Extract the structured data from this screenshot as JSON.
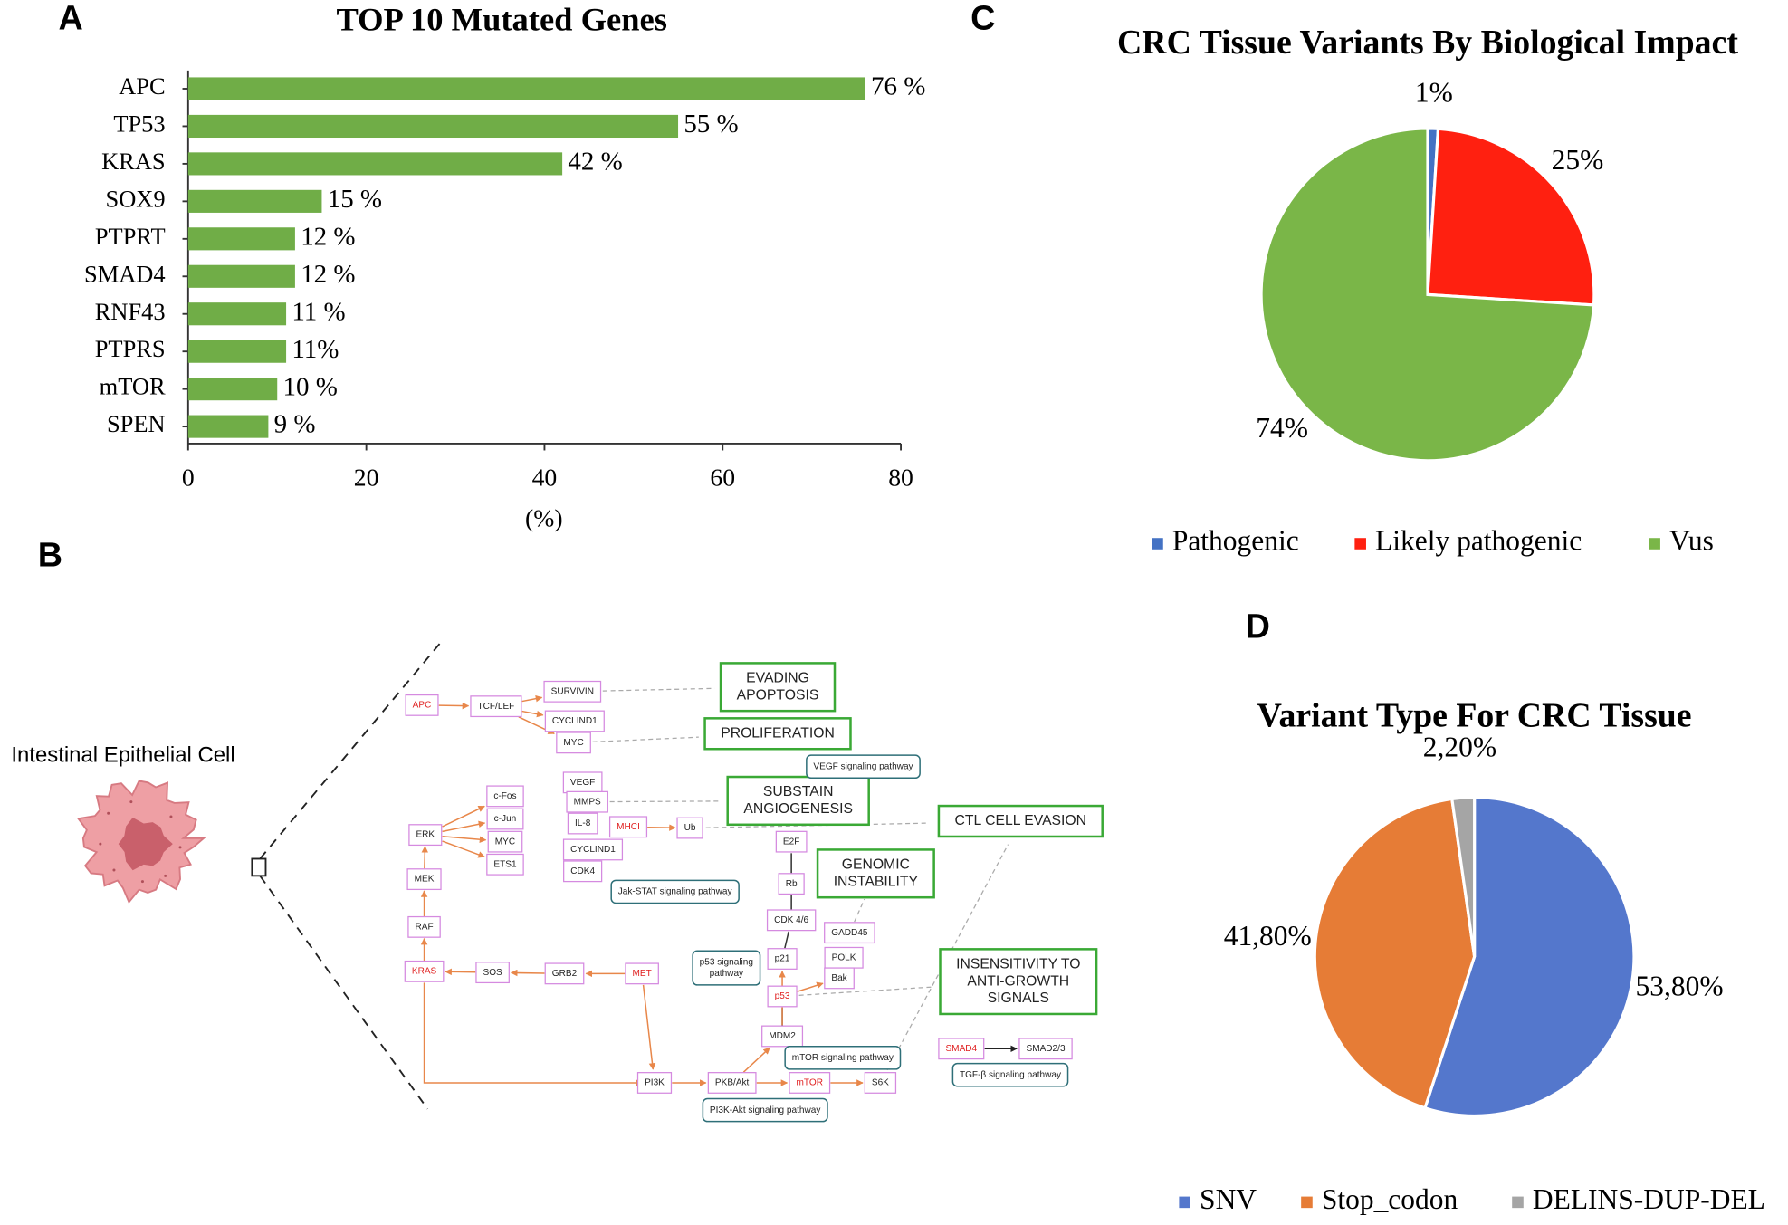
{
  "panel_labels": [
    "A",
    "B",
    "C",
    "D"
  ],
  "chart_data": [
    {
      "type": "bar",
      "orientation": "horizontal",
      "title": "TOP 10 Mutated Genes",
      "categories": [
        "APC",
        "TP53",
        "KRAS",
        "SOX9",
        "PTPRT",
        "SMAD4",
        "RNF43",
        "PTPRS",
        "mTOR",
        "SPEN"
      ],
      "values": [
        76,
        55,
        42,
        15,
        12,
        12,
        11,
        11,
        10,
        9
      ],
      "value_labels": [
        "76 %",
        "55 %",
        "42 %",
        "15 %",
        "12 %",
        "12 %",
        "11 %",
        "11%",
        "10 %",
        "9 %"
      ],
      "color": "#70ad47",
      "xlim": [
        0,
        80
      ],
      "xticks": [
        0,
        20,
        40,
        60,
        80
      ],
      "xlabel": "(%)"
    },
    {
      "type": "pie",
      "title": "CRC Tissue Variants By Biological Impact",
      "categories": [
        "Pathogenic",
        "Likely pathogenic",
        "Vus"
      ],
      "values": [
        1,
        25,
        74
      ],
      "value_labels": [
        "1%",
        "25%",
        "74%"
      ],
      "colors": [
        "#4472c4",
        "#ff2010",
        "#7ab648"
      ],
      "legend": "bottom"
    },
    {
      "type": "pie",
      "title": "Variant Type For CRC Tissue",
      "categories": [
        "SNV",
        "Stop_codon",
        "DELINS-DUP-DEL"
      ],
      "values": [
        53.8,
        41.8,
        2.2
      ],
      "value_labels": [
        "53,80%",
        "41,80%",
        "2,20%"
      ],
      "colors": [
        "#5477cc",
        "#e67c36",
        "#a5a5a5"
      ],
      "legend": "bottom"
    }
  ],
  "diagram": {
    "cell_label": "Intestinal Epithelial Cell",
    "nodes": [
      {
        "kind": "gene",
        "lines": [
          "APC"
        ],
        "color": "#e02020"
      },
      {
        "kind": "gene",
        "lines": [
          "TCF/LEF"
        ]
      },
      {
        "kind": "gene",
        "lines": [
          "SURVIVIN"
        ]
      },
      {
        "kind": "gene",
        "lines": [
          "CYCLIND1"
        ]
      },
      {
        "kind": "gene",
        "lines": [
          "MYC"
        ]
      },
      {
        "kind": "gene",
        "lines": [
          "c-Fos"
        ]
      },
      {
        "kind": "gene",
        "lines": [
          "c-Jun"
        ]
      },
      {
        "kind": "gene",
        "lines": [
          "VEGF"
        ]
      },
      {
        "kind": "gene",
        "lines": [
          "MMPS"
        ]
      },
      {
        "kind": "gene",
        "lines": [
          "IL-8"
        ]
      },
      {
        "kind": "gene",
        "lines": [
          "MHCI"
        ],
        "color": "#e02020"
      },
      {
        "kind": "gene",
        "lines": [
          "Ub"
        ]
      },
      {
        "kind": "gene",
        "lines": [
          "ERK"
        ]
      },
      {
        "kind": "gene",
        "lines": [
          "MYC"
        ]
      },
      {
        "kind": "gene",
        "lines": [
          "ETS1"
        ]
      },
      {
        "kind": "gene",
        "lines": [
          "CYCLIND1"
        ]
      },
      {
        "kind": "gene",
        "lines": [
          "CDK4"
        ]
      },
      {
        "kind": "gene",
        "lines": [
          "MEK"
        ]
      },
      {
        "kind": "gene",
        "lines": [
          "RAF"
        ]
      },
      {
        "kind": "gene",
        "lines": [
          "KRAS"
        ],
        "color": "#e02020"
      },
      {
        "kind": "gene",
        "lines": [
          "SOS"
        ]
      },
      {
        "kind": "gene",
        "lines": [
          "GRB2"
        ]
      },
      {
        "kind": "gene",
        "lines": [
          "MET"
        ],
        "color": "#e02020"
      },
      {
        "kind": "gene",
        "lines": [
          "PI3K"
        ]
      },
      {
        "kind": "gene",
        "lines": [
          "PKB/Akt"
        ]
      },
      {
        "kind": "gene",
        "lines": [
          "mTOR"
        ],
        "color": "#e02020"
      },
      {
        "kind": "gene",
        "lines": [
          "S6K"
        ]
      },
      {
        "kind": "gene",
        "lines": [
          "E2F"
        ]
      },
      {
        "kind": "gene",
        "lines": [
          "Rb"
        ]
      },
      {
        "kind": "gene",
        "lines": [
          "CDK 4/6"
        ]
      },
      {
        "kind": "gene",
        "lines": [
          "p21"
        ]
      },
      {
        "kind": "gene",
        "lines": [
          "p53"
        ],
        "color": "#e02020"
      },
      {
        "kind": "gene",
        "lines": [
          "MDM2"
        ]
      },
      {
        "kind": "gene",
        "lines": [
          "GADD45"
        ]
      },
      {
        "kind": "gene",
        "lines": [
          "POLK"
        ]
      },
      {
        "kind": "gene",
        "lines": [
          "Bak"
        ]
      },
      {
        "kind": "gene",
        "lines": [
          "SMAD4"
        ],
        "color": "#e02020"
      },
      {
        "kind": "gene",
        "lines": [
          "SMAD2/3"
        ]
      },
      {
        "kind": "outcome",
        "lines": [
          "EVADING",
          "APOPTOSIS"
        ]
      },
      {
        "kind": "outcome",
        "lines": [
          "PROLIFERATION"
        ]
      },
      {
        "kind": "outcome",
        "lines": [
          "SUBSTAIN",
          "ANGIOGENESIS"
        ]
      },
      {
        "kind": "outcome",
        "lines": [
          "CTL CELL EVASION"
        ]
      },
      {
        "kind": "outcome",
        "lines": [
          "GENOMIC",
          "INSTABILITY"
        ]
      },
      {
        "kind": "outcome",
        "lines": [
          "INSENSITIVITY TO",
          "ANTI-GROWTH",
          "SIGNALS"
        ]
      },
      {
        "kind": "pathway",
        "lines": [
          "VEGF signaling pathway"
        ]
      },
      {
        "kind": "pathway",
        "lines": [
          "Jak-STAT signaling pathway"
        ]
      },
      {
        "kind": "pathway",
        "lines": [
          "p53 signaling",
          "pathway"
        ]
      },
      {
        "kind": "pathway",
        "lines": [
          "mTOR signaling pathway"
        ]
      },
      {
        "kind": "pathway",
        "lines": [
          "PI3K-Akt signaling pathway"
        ]
      },
      {
        "kind": "pathway",
        "lines": [
          "TGF-β signaling pathway"
        ]
      }
    ]
  }
}
